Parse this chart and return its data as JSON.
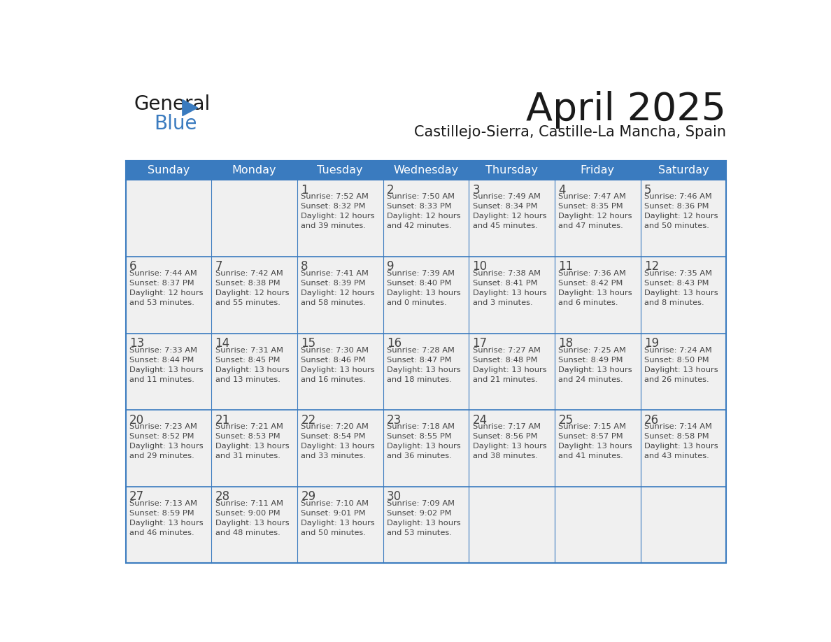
{
  "title": "April 2025",
  "subtitle": "Castillejo-Sierra, Castille-La Mancha, Spain",
  "header_color": "#3a7bbf",
  "header_text_color": "#ffffff",
  "cell_bg_color": "#efefef",
  "border_color": "#3a7bbf",
  "text_color": "#444444",
  "days_of_week": [
    "Sunday",
    "Monday",
    "Tuesday",
    "Wednesday",
    "Thursday",
    "Friday",
    "Saturday"
  ],
  "calendar": [
    [
      {
        "day": null,
        "info": null
      },
      {
        "day": null,
        "info": null
      },
      {
        "day": 1,
        "sunrise": "7:52 AM",
        "sunset": "8:32 PM",
        "daylight_h": "12 hours",
        "daylight_m": "and 39 minutes."
      },
      {
        "day": 2,
        "sunrise": "7:50 AM",
        "sunset": "8:33 PM",
        "daylight_h": "12 hours",
        "daylight_m": "and 42 minutes."
      },
      {
        "day": 3,
        "sunrise": "7:49 AM",
        "sunset": "8:34 PM",
        "daylight_h": "12 hours",
        "daylight_m": "and 45 minutes."
      },
      {
        "day": 4,
        "sunrise": "7:47 AM",
        "sunset": "8:35 PM",
        "daylight_h": "12 hours",
        "daylight_m": "and 47 minutes."
      },
      {
        "day": 5,
        "sunrise": "7:46 AM",
        "sunset": "8:36 PM",
        "daylight_h": "12 hours",
        "daylight_m": "and 50 minutes."
      }
    ],
    [
      {
        "day": 6,
        "sunrise": "7:44 AM",
        "sunset": "8:37 PM",
        "daylight_h": "12 hours",
        "daylight_m": "and 53 minutes."
      },
      {
        "day": 7,
        "sunrise": "7:42 AM",
        "sunset": "8:38 PM",
        "daylight_h": "12 hours",
        "daylight_m": "and 55 minutes."
      },
      {
        "day": 8,
        "sunrise": "7:41 AM",
        "sunset": "8:39 PM",
        "daylight_h": "12 hours",
        "daylight_m": "and 58 minutes."
      },
      {
        "day": 9,
        "sunrise": "7:39 AM",
        "sunset": "8:40 PM",
        "daylight_h": "13 hours",
        "daylight_m": "and 0 minutes."
      },
      {
        "day": 10,
        "sunrise": "7:38 AM",
        "sunset": "8:41 PM",
        "daylight_h": "13 hours",
        "daylight_m": "and 3 minutes."
      },
      {
        "day": 11,
        "sunrise": "7:36 AM",
        "sunset": "8:42 PM",
        "daylight_h": "13 hours",
        "daylight_m": "and 6 minutes."
      },
      {
        "day": 12,
        "sunrise": "7:35 AM",
        "sunset": "8:43 PM",
        "daylight_h": "13 hours",
        "daylight_m": "and 8 minutes."
      }
    ],
    [
      {
        "day": 13,
        "sunrise": "7:33 AM",
        "sunset": "8:44 PM",
        "daylight_h": "13 hours",
        "daylight_m": "and 11 minutes."
      },
      {
        "day": 14,
        "sunrise": "7:31 AM",
        "sunset": "8:45 PM",
        "daylight_h": "13 hours",
        "daylight_m": "and 13 minutes."
      },
      {
        "day": 15,
        "sunrise": "7:30 AM",
        "sunset": "8:46 PM",
        "daylight_h": "13 hours",
        "daylight_m": "and 16 minutes."
      },
      {
        "day": 16,
        "sunrise": "7:28 AM",
        "sunset": "8:47 PM",
        "daylight_h": "13 hours",
        "daylight_m": "and 18 minutes."
      },
      {
        "day": 17,
        "sunrise": "7:27 AM",
        "sunset": "8:48 PM",
        "daylight_h": "13 hours",
        "daylight_m": "and 21 minutes."
      },
      {
        "day": 18,
        "sunrise": "7:25 AM",
        "sunset": "8:49 PM",
        "daylight_h": "13 hours",
        "daylight_m": "and 24 minutes."
      },
      {
        "day": 19,
        "sunrise": "7:24 AM",
        "sunset": "8:50 PM",
        "daylight_h": "13 hours",
        "daylight_m": "and 26 minutes."
      }
    ],
    [
      {
        "day": 20,
        "sunrise": "7:23 AM",
        "sunset": "8:52 PM",
        "daylight_h": "13 hours",
        "daylight_m": "and 29 minutes."
      },
      {
        "day": 21,
        "sunrise": "7:21 AM",
        "sunset": "8:53 PM",
        "daylight_h": "13 hours",
        "daylight_m": "and 31 minutes."
      },
      {
        "day": 22,
        "sunrise": "7:20 AM",
        "sunset": "8:54 PM",
        "daylight_h": "13 hours",
        "daylight_m": "and 33 minutes."
      },
      {
        "day": 23,
        "sunrise": "7:18 AM",
        "sunset": "8:55 PM",
        "daylight_h": "13 hours",
        "daylight_m": "and 36 minutes."
      },
      {
        "day": 24,
        "sunrise": "7:17 AM",
        "sunset": "8:56 PM",
        "daylight_h": "13 hours",
        "daylight_m": "and 38 minutes."
      },
      {
        "day": 25,
        "sunrise": "7:15 AM",
        "sunset": "8:57 PM",
        "daylight_h": "13 hours",
        "daylight_m": "and 41 minutes."
      },
      {
        "day": 26,
        "sunrise": "7:14 AM",
        "sunset": "8:58 PM",
        "daylight_h": "13 hours",
        "daylight_m": "and 43 minutes."
      }
    ],
    [
      {
        "day": 27,
        "sunrise": "7:13 AM",
        "sunset": "8:59 PM",
        "daylight_h": "13 hours",
        "daylight_m": "and 46 minutes."
      },
      {
        "day": 28,
        "sunrise": "7:11 AM",
        "sunset": "9:00 PM",
        "daylight_h": "13 hours",
        "daylight_m": "and 48 minutes."
      },
      {
        "day": 29,
        "sunrise": "7:10 AM",
        "sunset": "9:01 PM",
        "daylight_h": "13 hours",
        "daylight_m": "and 50 minutes."
      },
      {
        "day": 30,
        "sunrise": "7:09 AM",
        "sunset": "9:02 PM",
        "daylight_h": "13 hours",
        "daylight_m": "and 53 minutes."
      },
      {
        "day": null,
        "info": null
      },
      {
        "day": null,
        "info": null
      },
      {
        "day": null,
        "info": null
      }
    ]
  ],
  "logo_general_color": "#1a1a1a",
  "logo_blue_color": "#3a7bbf",
  "logo_triangle_color": "#3a7bbf"
}
